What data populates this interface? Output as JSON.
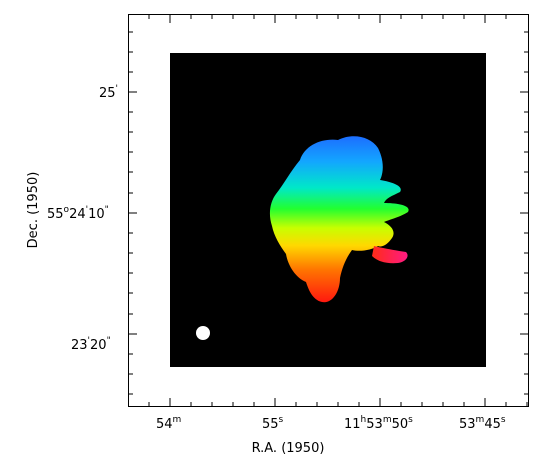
{
  "chart_data": {
    "type": "heatmap",
    "description_colormap": "velocity field (hue encodes velocity)",
    "xlabel": "R.A. (1950)",
    "ylabel": "Dec. (1950)",
    "x_ticks": [
      {
        "main": "54",
        "sup": "m"
      },
      {
        "main": "55",
        "sup": "s"
      },
      {
        "main": "11",
        "sup": "h",
        "main2": "53",
        "sup2": "m",
        "main3": "50",
        "sup3": "s"
      },
      {
        "main": "53",
        "sup": "m",
        "main2": "45",
        "sup2": "s"
      }
    ],
    "y_ticks": [
      {
        "main": "25",
        "sup": "'"
      },
      {
        "main": "55",
        "sup": "o",
        "main2": "24",
        "sup2": "'",
        "main3": "10",
        "sup3": "\""
      },
      {
        "main": "23",
        "sup": "'",
        "main2": "20",
        "sup2": "\""
      }
    ],
    "beam": "white filled circle (lower-left)",
    "colors": {
      "background": "#000000",
      "frame": "#000000",
      "beam": "#ffffff",
      "gradient_top": "#1f7bff",
      "gradient_mid": "#24ff2d",
      "gradient_upper_mid": "#00e6d9",
      "gradient_lower_mid": "#ffe100",
      "gradient_bottom": "#ff1a1a",
      "tail": "#ff1c80"
    }
  }
}
